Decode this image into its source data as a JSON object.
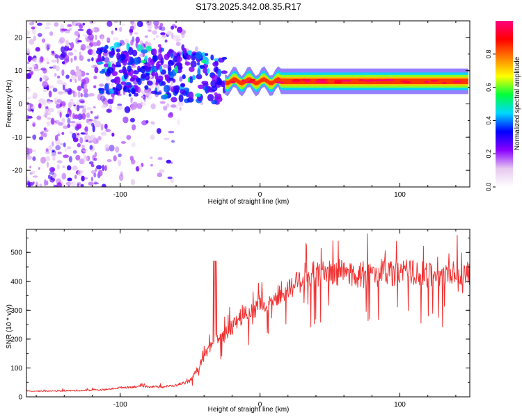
{
  "figure": {
    "title": "S173.2025.342.08.35.R17"
  },
  "chart_data": [
    {
      "type": "heatmap",
      "xlabel": "Height of straight line (km)",
      "ylabel": "Frequency (Hz)",
      "xlim": [
        -167,
        150
      ],
      "ylim": [
        -25,
        25
      ],
      "xticks": [
        -100,
        0,
        100
      ],
      "yticks": [
        -20,
        -10,
        0,
        10,
        20
      ],
      "colorbar": {
        "label": "Normalized spectral amplitude",
        "range": [
          0.0,
          1.0
        ],
        "ticks": [
          "0.0",
          "0.2",
          "0.4",
          "0.6",
          "0.8"
        ],
        "colors": [
          "#ffffff",
          "#e6c8f0",
          "#8a00ff",
          "#0000ff",
          "#00d8ff",
          "#00ff3c",
          "#ffff00",
          "#ff8000",
          "#ff0000",
          "#ff0080"
        ]
      },
      "features": [
        {
          "name": "noise-cloud",
          "x_range": [
            -167,
            -55
          ],
          "f_range": [
            -25,
            25
          ],
          "amp": 0.15
        },
        {
          "name": "turbulent-band",
          "x_range": [
            -115,
            -25
          ],
          "f_range": [
            2,
            17
          ],
          "amp": 0.3
        },
        {
          "name": "signal-ridge",
          "x_range": [
            -25,
            150
          ],
          "f_center": 6.8,
          "f_halfwidth": 1.2,
          "amp": 0.85
        }
      ]
    },
    {
      "type": "line",
      "xlabel": "Height of straight line (km)",
      "ylabel": "SNR (10 * v/v)",
      "xlim": [
        -167,
        150
      ],
      "ylim": [
        0,
        580
      ],
      "xticks": [
        -100,
        0,
        100
      ],
      "yticks": [
        0,
        100,
        200,
        300,
        400,
        500
      ],
      "color": "#f03030",
      "series": {
        "name": "SNR",
        "x": [
          -167,
          -150,
          -130,
          -110,
          -100,
          -90,
          -80,
          -70,
          -60,
          -50,
          -45,
          -40,
          -35,
          -32,
          -30,
          -25,
          -20,
          -15,
          -10,
          -5,
          0,
          5,
          10,
          15,
          20,
          25,
          30,
          40,
          50,
          60,
          70,
          80,
          90,
          100,
          110,
          120,
          130,
          140,
          150
        ],
        "y": [
          20,
          20,
          22,
          25,
          32,
          35,
          36,
          34,
          40,
          55,
          90,
          140,
          175,
          200,
          195,
          215,
          240,
          270,
          290,
          300,
          320,
          330,
          340,
          360,
          375,
          390,
          410,
          425,
          430,
          430,
          420,
          428,
          432,
          425,
          430,
          420,
          418,
          430,
          420
        ]
      }
    }
  ]
}
